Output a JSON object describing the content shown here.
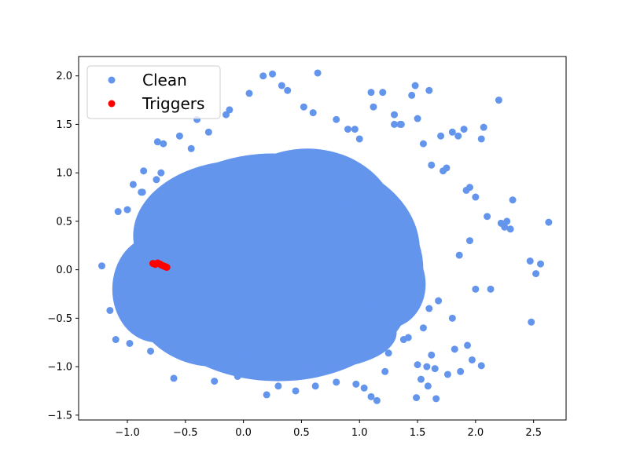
{
  "chart_data": {
    "type": "scatter",
    "title": "",
    "xlabel": "",
    "ylabel": "",
    "xlim": [
      -1.42,
      2.78
    ],
    "ylim": [
      -1.55,
      2.2
    ],
    "grid": false,
    "legend_position": "top-left",
    "x_ticks": [
      -1.0,
      -0.5,
      0.0,
      0.5,
      1.0,
      1.5,
      2.0,
      2.5
    ],
    "x_tick_labels": [
      "−1.0",
      "−0.5",
      "0.0",
      "0.5",
      "1.0",
      "1.5",
      "2.0",
      "2.5"
    ],
    "y_ticks": [
      -1.5,
      -1.0,
      -0.5,
      0.0,
      0.5,
      1.0,
      1.5,
      2.0
    ],
    "y_tick_labels": [
      "−1.5",
      "−1.0",
      "−0.5",
      "0.0",
      "0.5",
      "1.0",
      "1.5",
      "2.0"
    ],
    "series": [
      {
        "name": "Clean",
        "color": "#6495ED",
        "x": [
          -1.22,
          -0.95,
          -0.88,
          -0.86,
          -0.74,
          -0.71,
          -0.69,
          -0.55,
          -0.45,
          -0.4,
          -0.3,
          -0.15,
          -0.12,
          0.05,
          0.17,
          0.25,
          0.33,
          0.38,
          0.52,
          0.6,
          0.64,
          0.8,
          0.9,
          0.96,
          1.0,
          1.1,
          1.12,
          1.2,
          1.3,
          1.35,
          1.45,
          1.48,
          1.5,
          1.55,
          1.6,
          1.62,
          1.7,
          1.72,
          1.75,
          1.8,
          1.85,
          1.9,
          1.92,
          1.95,
          2.0,
          2.05,
          2.07,
          2.1,
          2.2,
          2.22,
          2.25,
          2.27,
          2.3,
          2.32,
          2.47,
          2.48,
          2.52,
          2.56,
          2.63,
          1.49,
          1.59,
          1.3,
          1.36,
          1.53,
          1.66,
          1.76,
          1.87,
          1.97,
          2.05,
          1.65,
          1.5,
          1.58,
          1.82,
          1.93,
          1.1,
          1.15,
          0.8,
          0.62,
          0.45,
          0.3,
          0.2,
          -0.05,
          -0.25,
          -0.6,
          -0.8,
          -0.98,
          -1.1,
          -1.15,
          -1.08,
          -1.0,
          -0.87,
          -0.75,
          -0.58,
          -0.36,
          -0.21,
          0.05,
          0.55,
          0.78,
          1.25,
          1.42,
          1.55,
          1.6,
          1.68,
          1.8,
          2.0,
          2.13,
          0.97,
          1.04,
          1.22,
          1.62,
          1.86,
          1.95,
          1.38
        ],
        "y": [
          0.04,
          0.88,
          0.8,
          1.02,
          1.32,
          1.0,
          1.3,
          1.38,
          1.25,
          1.55,
          1.42,
          1.6,
          1.65,
          1.82,
          2.0,
          2.02,
          1.9,
          1.85,
          1.68,
          1.62,
          2.03,
          1.55,
          1.45,
          1.45,
          1.35,
          1.83,
          1.68,
          1.83,
          1.6,
          1.5,
          1.8,
          1.9,
          1.56,
          1.3,
          1.85,
          1.08,
          1.38,
          1.02,
          1.05,
          1.42,
          1.38,
          1.45,
          0.82,
          0.85,
          0.75,
          1.35,
          1.47,
          0.55,
          1.75,
          0.48,
          0.44,
          0.5,
          0.42,
          0.72,
          0.09,
          -0.54,
          -0.04,
          0.06,
          0.49,
          -1.32,
          -1.2,
          1.5,
          1.5,
          -1.13,
          -1.33,
          -1.08,
          -1.05,
          -0.93,
          -0.99,
          -1.02,
          -0.98,
          -1.0,
          -0.82,
          -0.78,
          -1.31,
          -1.35,
          -1.16,
          -1.2,
          -1.25,
          -1.2,
          -1.29,
          -1.1,
          -1.15,
          -1.12,
          -0.84,
          -0.76,
          -0.72,
          -0.42,
          0.6,
          0.62,
          0.8,
          0.93,
          0.9,
          1.02,
          1.0,
          1.1,
          -1.0,
          -0.99,
          -0.86,
          -0.7,
          -0.6,
          -0.4,
          -0.32,
          -0.5,
          -0.2,
          -0.2,
          -1.18,
          -1.22,
          -1.05,
          -0.88,
          0.15,
          0.3,
          -0.72
        ]
      },
      {
        "name": "Triggers",
        "color": "#FF0000",
        "x": [
          -0.78,
          -0.76,
          -0.74,
          -0.72,
          -0.71,
          -0.7,
          -0.69,
          -0.68,
          -0.67,
          -0.66
        ],
        "y": [
          0.065,
          0.055,
          0.07,
          0.06,
          0.05,
          0.045,
          0.04,
          0.035,
          0.03,
          0.025
        ]
      }
    ]
  }
}
